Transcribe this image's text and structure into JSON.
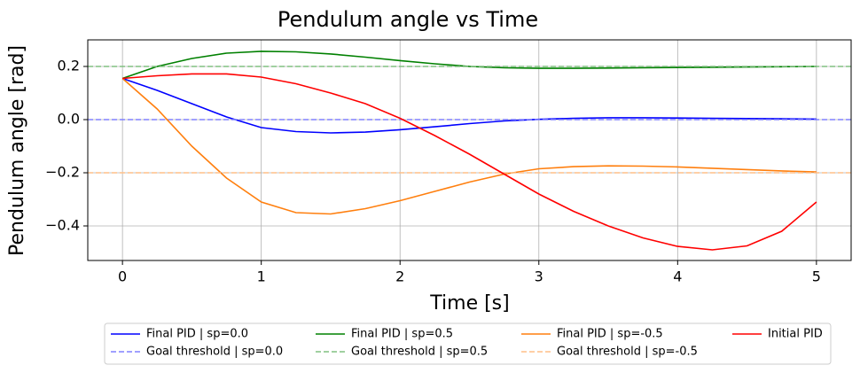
{
  "chart_data": {
    "type": "line",
    "title": "Pendulum angle vs Time",
    "xlabel": "Time [s]",
    "ylabel": "Pendulum angle [rad]",
    "x": [
      0,
      0.25,
      0.5,
      0.75,
      1,
      1.25,
      1.5,
      1.75,
      2,
      2.25,
      2.5,
      2.75,
      3,
      3.25,
      3.5,
      3.75,
      4,
      4.25,
      4.5,
      4.75,
      5
    ],
    "xlim": [
      -0.25,
      5.25
    ],
    "xticks": [
      0,
      1,
      2,
      3,
      4,
      5
    ],
    "ylim": [
      -0.53,
      0.3
    ],
    "yticks": [
      {
        "value": -0.4,
        "label": "−0.4"
      },
      {
        "value": -0.2,
        "label": "−0.2"
      },
      {
        "value": 0,
        "label": "0.0"
      },
      0.2
    ],
    "grid": true,
    "legend": "below",
    "series": [
      {
        "name": "Final PID | sp=0.0",
        "color": "#0000ff",
        "values": [
          0.155,
          0.11,
          0.06,
          0.01,
          -0.03,
          -0.045,
          -0.05,
          -0.047,
          -0.038,
          -0.027,
          -0.015,
          -0.005,
          0.001,
          0.005,
          0.007,
          0.007,
          0.006,
          0.005,
          0.004,
          0.003,
          0.002
        ]
      },
      {
        "name": "Goal threshold | sp=0.0",
        "color": "#8080ff",
        "dashed": true,
        "threshold": 0
      },
      {
        "name": "Final PID | sp=0.5",
        "color": "#008000",
        "values": [
          0.155,
          0.2,
          0.23,
          0.25,
          0.257,
          0.255,
          0.247,
          0.235,
          0.222,
          0.21,
          0.2,
          0.195,
          0.193,
          0.193,
          0.194,
          0.195,
          0.196,
          0.197,
          0.198,
          0.199,
          0.2
        ]
      },
      {
        "name": "Goal threshold | sp=0.5",
        "color": "#80c080",
        "dashed": true,
        "threshold": 0.2
      },
      {
        "name": "Final PID | sp=-0.5",
        "color": "#ff7f0e",
        "values": [
          0.155,
          0.04,
          -0.1,
          -0.22,
          -0.31,
          -0.35,
          -0.355,
          -0.335,
          -0.305,
          -0.27,
          -0.235,
          -0.205,
          -0.185,
          -0.177,
          -0.174,
          -0.175,
          -0.178,
          -0.183,
          -0.188,
          -0.193,
          -0.197
        ]
      },
      {
        "name": "Goal threshold | sp=-0.5",
        "color": "#ffbf87",
        "dashed": true,
        "threshold": -0.2
      },
      {
        "name": "Initial PID",
        "color": "#ff0000",
        "values": [
          0.155,
          0.165,
          0.172,
          0.172,
          0.16,
          0.135,
          0.1,
          0.06,
          0.005,
          -0.06,
          -0.13,
          -0.205,
          -0.28,
          -0.345,
          -0.4,
          -0.445,
          -0.477,
          -0.49,
          -0.475,
          -0.42,
          -0.31
        ]
      }
    ]
  }
}
